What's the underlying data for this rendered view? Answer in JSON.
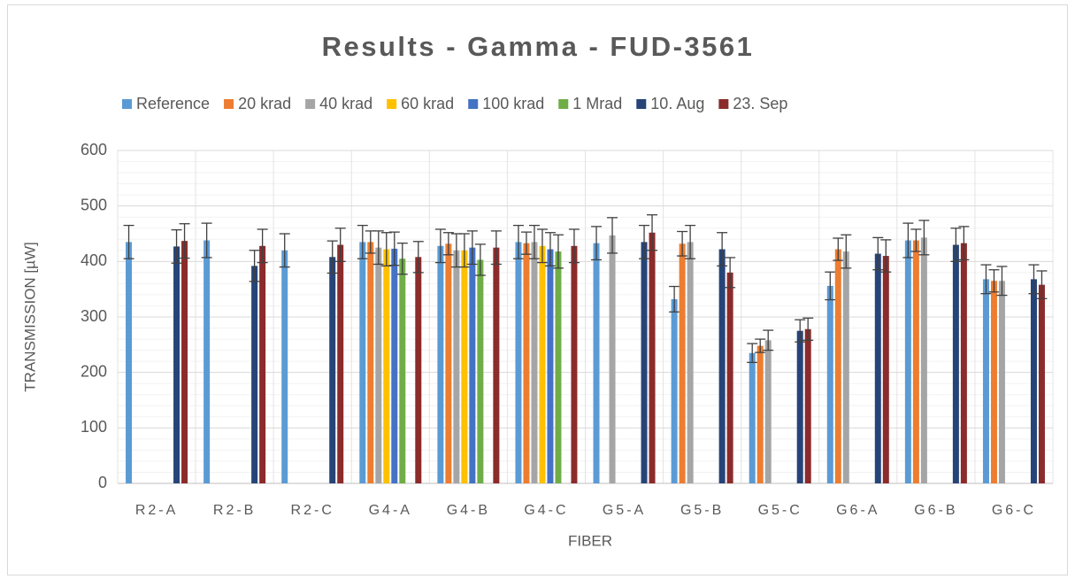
{
  "chart_data": {
    "type": "bar",
    "title": "Results - Gamma - FUD-3561",
    "x_label": "FIBER",
    "y_label": "TRANSMISSION [µW]",
    "categories": [
      "R2-A",
      "R2-B",
      "R2-C",
      "G4-A",
      "G4-B",
      "G4-C",
      "G5-A",
      "G5-B",
      "G5-C",
      "G6-A",
      "G6-B",
      "G6-C"
    ],
    "series": [
      {
        "name": "Reference",
        "color": "#5b9bd5",
        "values": [
          435,
          438,
          420,
          435,
          428,
          435,
          433,
          332,
          235,
          356,
          438,
          368
        ],
        "errors": [
          30,
          31,
          30,
          30,
          30,
          30,
          30,
          23,
          17,
          25,
          31,
          26
        ]
      },
      {
        "name": "20 krad",
        "color": "#ed7d31",
        "values": [
          null,
          null,
          null,
          435,
          432,
          433,
          null,
          432,
          248,
          422,
          438,
          365
        ],
        "errors": [
          null,
          null,
          null,
          20,
          20,
          20,
          null,
          22,
          12,
          20,
          20,
          20
        ]
      },
      {
        "name": "40 krad",
        "color": "#a5a5a5",
        "values": [
          null,
          null,
          null,
          425,
          420,
          435,
          447,
          435,
          258,
          418,
          443,
          365
        ],
        "errors": [
          null,
          null,
          null,
          30,
          30,
          30,
          32,
          30,
          18,
          30,
          31,
          26
        ]
      },
      {
        "name": "60 krad",
        "color": "#ffc000",
        "values": [
          null,
          null,
          null,
          422,
          420,
          428,
          null,
          null,
          null,
          null,
          null,
          null
        ],
        "errors": [
          null,
          null,
          null,
          30,
          30,
          30,
          null,
          null,
          null,
          null,
          null,
          null
        ]
      },
      {
        "name": "100 krad",
        "color": "#4472c4",
        "values": [
          null,
          null,
          null,
          423,
          425,
          422,
          null,
          null,
          null,
          null,
          null,
          null
        ],
        "errors": [
          null,
          null,
          null,
          30,
          30,
          30,
          null,
          null,
          null,
          null,
          null,
          null
        ]
      },
      {
        "name": "1 Mrad",
        "color": "#70ad47",
        "values": [
          null,
          null,
          null,
          405,
          403,
          418,
          null,
          null,
          null,
          null,
          null,
          null
        ],
        "errors": [
          null,
          null,
          null,
          28,
          28,
          30,
          null,
          null,
          null,
          null,
          null,
          null
        ]
      },
      {
        "name": "10. Aug",
        "color": "#264478",
        "values": [
          427,
          392,
          408,
          null,
          null,
          null,
          435,
          422,
          275,
          414,
          430,
          368
        ],
        "errors": [
          30,
          28,
          29,
          null,
          null,
          null,
          30,
          30,
          20,
          29,
          30,
          26
        ]
      },
      {
        "name": "23. Sep",
        "color": "#8b2b2b",
        "values": [
          437,
          428,
          430,
          408,
          425,
          428,
          452,
          380,
          278,
          410,
          433,
          358
        ],
        "errors": [
          31,
          30,
          30,
          28,
          30,
          30,
          32,
          27,
          20,
          29,
          30,
          25
        ]
      }
    ],
    "ylim": [
      0,
      600
    ],
    "yticks": [
      0,
      100,
      200,
      300,
      400,
      500,
      600
    ],
    "y_minor_ticks": [
      20,
      40,
      60,
      80,
      120,
      140,
      160,
      180,
      220,
      240,
      260,
      280,
      320,
      340,
      360,
      380,
      420,
      440,
      460,
      480,
      520,
      540,
      560,
      580
    ],
    "grid": true,
    "legend": "top"
  }
}
